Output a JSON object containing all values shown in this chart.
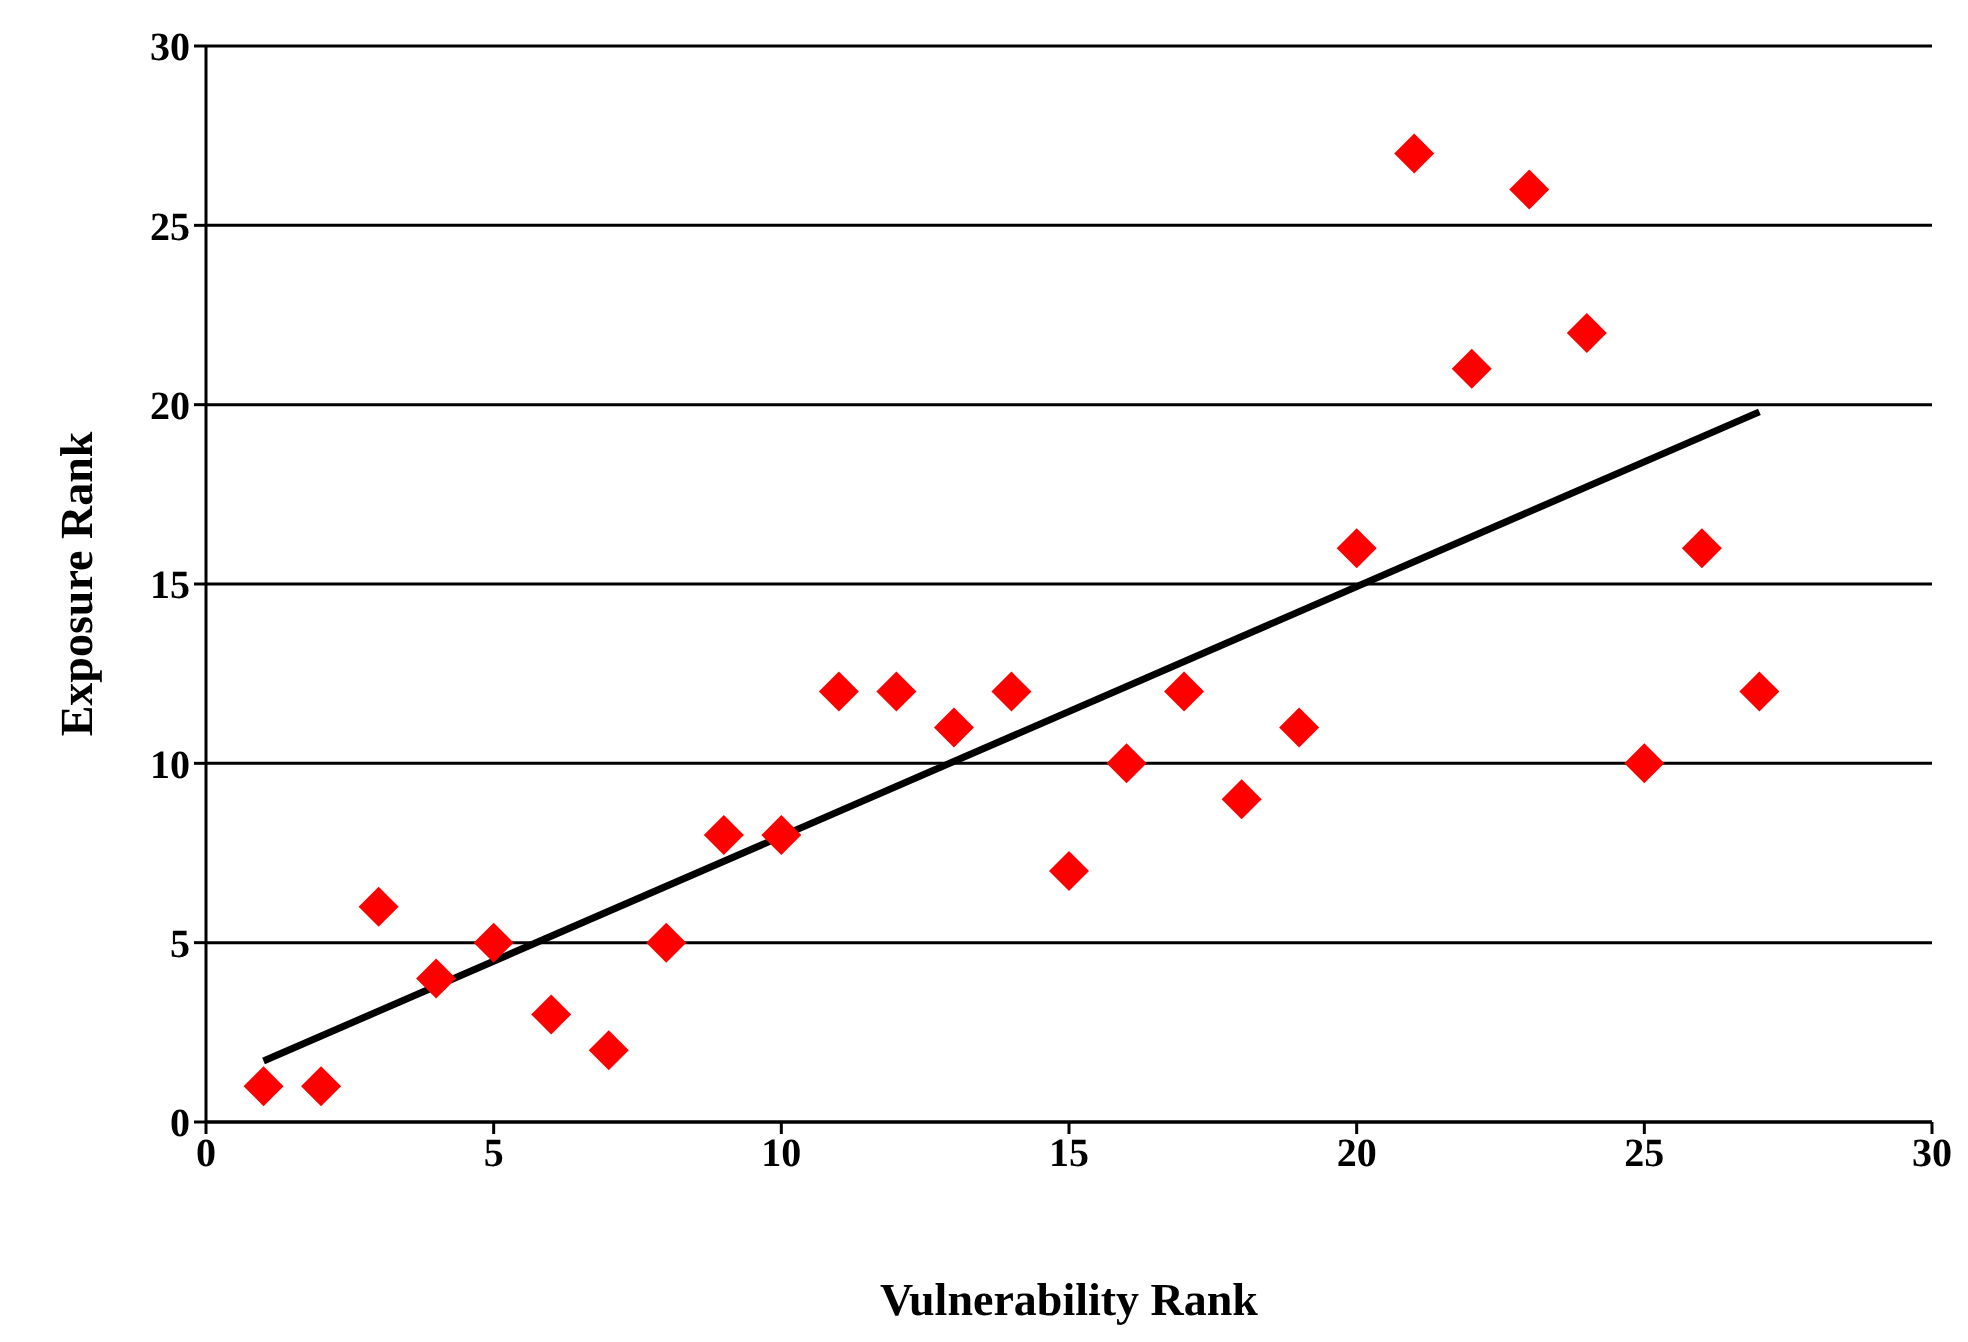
{
  "chart_data": {
    "type": "scatter",
    "xlabel": "Vulnerability Rank",
    "ylabel": "Exposure Rank",
    "xlim": [
      0,
      30
    ],
    "xticks": [
      0,
      5,
      10,
      15,
      20,
      25,
      30
    ],
    "ylim": [
      0,
      30
    ],
    "yticks": [
      0,
      5,
      10,
      15,
      20,
      25,
      30
    ],
    "grid": "y",
    "legend": false,
    "series": [
      {
        "color": "#ff0000",
        "marker": "diamond",
        "x": [
          1,
          2,
          3,
          4,
          5,
          6,
          7,
          8,
          9,
          10,
          11,
          12,
          13,
          14,
          15,
          16,
          17,
          18,
          19,
          20,
          21,
          22,
          23,
          24,
          25,
          26,
          27
        ],
        "values": [
          1,
          1,
          6,
          4,
          5,
          3,
          2,
          5,
          8,
          8,
          12,
          12,
          11,
          12,
          7,
          10,
          12,
          9,
          11,
          16,
          27,
          21,
          26,
          22,
          10,
          16,
          12
        ]
      },
      {
        "type": "line",
        "color": "#000000",
        "marker": "none",
        "line_style": "solid",
        "x": [
          1,
          27
        ],
        "values": [
          1.7,
          19.8
        ]
      }
    ]
  }
}
